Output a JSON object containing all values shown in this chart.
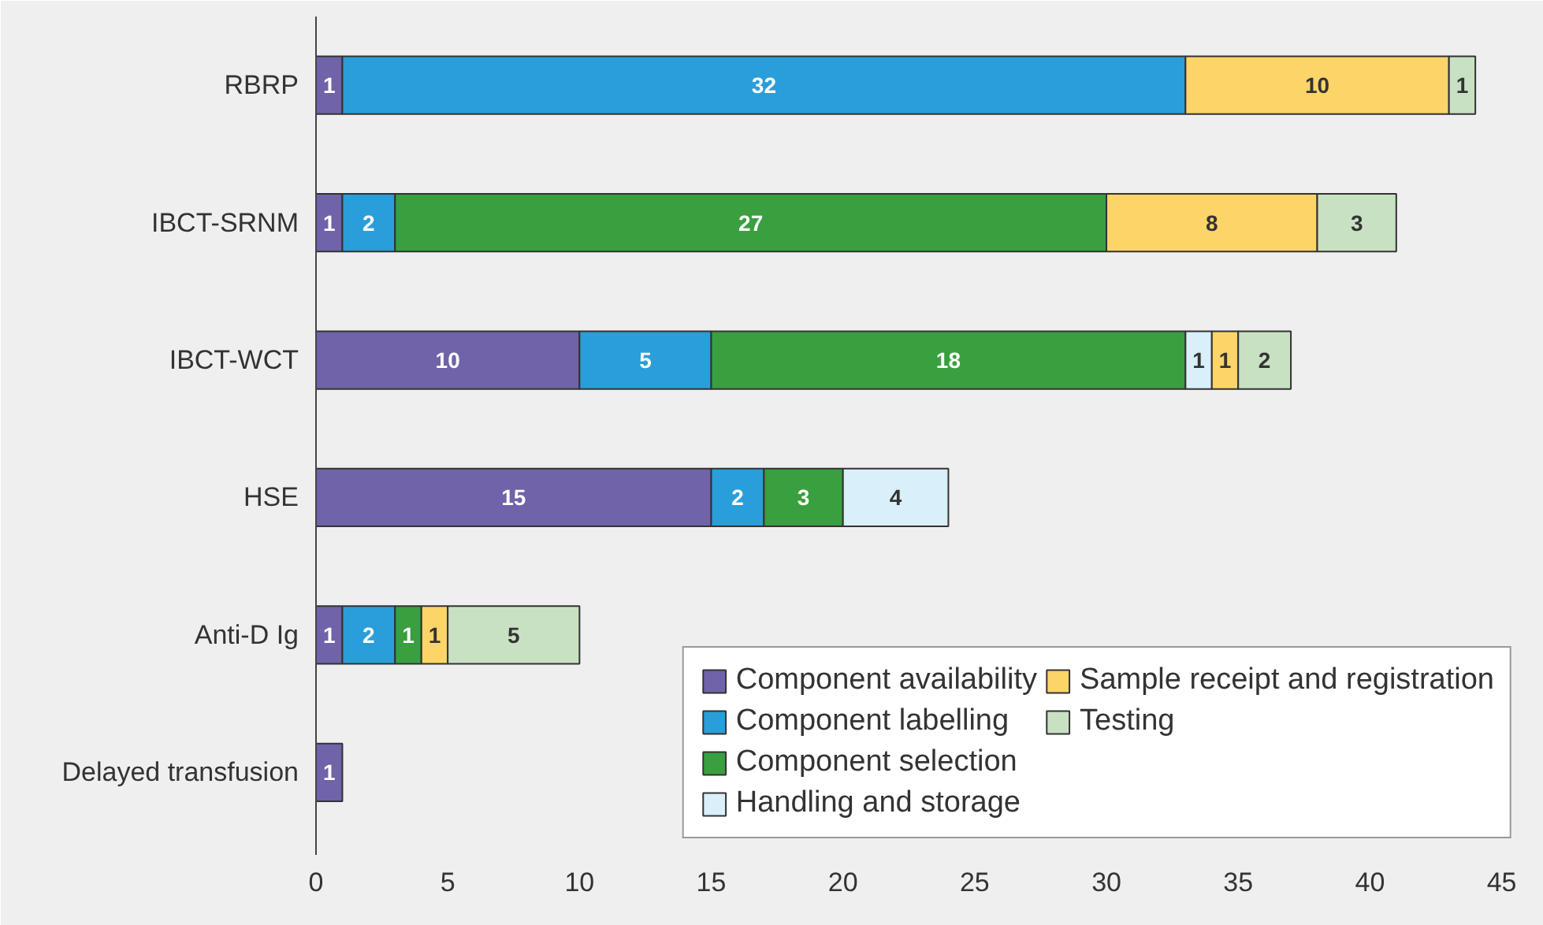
{
  "chart_data": {
    "type": "bar",
    "orientation": "horizontal",
    "stacked": true,
    "data_labels": true,
    "grid": false,
    "legend": "bottom right",
    "categories": [
      "RBRP",
      "IBCT-SRNM",
      "IBCT-WCT",
      "HSE",
      "Anti-D Ig",
      "Delayed transfusion"
    ],
    "xlim": [
      0,
      46
    ],
    "xticks": [
      0,
      5,
      10,
      15,
      20,
      25,
      30,
      35,
      40,
      45
    ],
    "series": [
      {
        "name": "Component availability",
        "color": "#7063a9",
        "values": [
          1,
          1,
          10,
          15,
          1,
          1
        ]
      },
      {
        "name": "Component labelling",
        "color": "#2a9ed8",
        "values": [
          32,
          2,
          5,
          2,
          2,
          null
        ]
      },
      {
        "name": "Component selection",
        "color": "#3a9f3f",
        "values": [
          null,
          27,
          18,
          3,
          1,
          null
        ]
      },
      {
        "name": "Handling and storage",
        "color": "#d9eff9",
        "values": [
          null,
          null,
          1,
          4,
          null,
          null
        ]
      },
      {
        "name": "Sample receipt and registration",
        "color": "#fdd468",
        "values": [
          10,
          8,
          1,
          null,
          1,
          null
        ]
      },
      {
        "name": "Testing",
        "color": "#c9e1c3",
        "values": [
          1,
          3,
          2,
          null,
          5,
          null
        ]
      }
    ]
  }
}
